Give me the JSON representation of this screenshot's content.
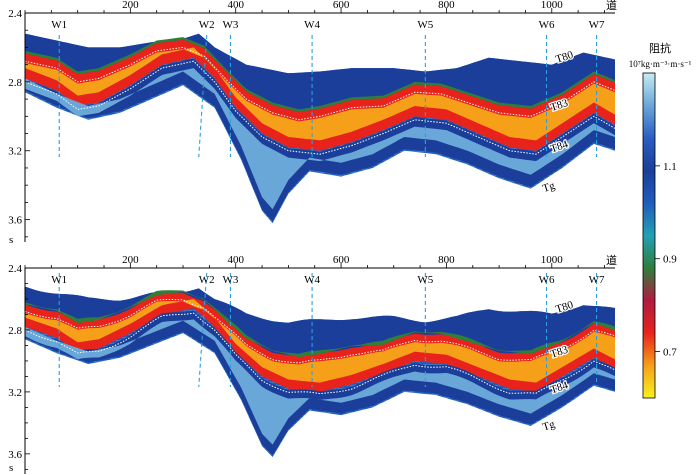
{
  "chart_data": [
    {
      "type": "heatmap",
      "panel": "top",
      "x_ticks": [
        200,
        400,
        600,
        800,
        1000
      ],
      "x_unit": "道",
      "y_ticks": [
        2.4,
        2.8,
        3.2,
        3.6
      ],
      "y_unit": "s",
      "xlim": [
        0,
        1120
      ],
      "ylim": [
        2.4,
        3.73
      ],
      "wells": [
        {
          "name": "W1",
          "trace": 65
        },
        {
          "name": "W2",
          "trace": 345
        },
        {
          "name": "W3",
          "trace": 390
        },
        {
          "name": "W4",
          "trace": 545
        },
        {
          "name": "W5",
          "trace": 760
        },
        {
          "name": "W6",
          "trace": 990
        },
        {
          "name": "W7",
          "trace": 1085
        }
      ],
      "horizons": [
        {
          "name": "T80",
          "label_trace": 1010,
          "label_time": 2.69
        },
        {
          "name": "T83",
          "label_trace": 1000,
          "label_time": 2.97
        },
        {
          "name": "T84",
          "label_trace": 1000,
          "label_time": 3.21
        },
        {
          "name": "Tg",
          "label_trace": 985,
          "label_time": 3.44
        }
      ]
    },
    {
      "type": "heatmap",
      "panel": "bottom",
      "x_ticks": [
        200,
        400,
        600,
        800,
        1000
      ],
      "x_unit": "道",
      "y_ticks": [
        2.4,
        2.8,
        3.2,
        3.6
      ],
      "y_unit": "s",
      "xlim": [
        0,
        1120
      ],
      "ylim": [
        2.4,
        3.73
      ],
      "wells": [
        {
          "name": "W1",
          "trace": 65
        },
        {
          "name": "W2",
          "trace": 345
        },
        {
          "name": "W3",
          "trace": 390
        },
        {
          "name": "W4",
          "trace": 545
        },
        {
          "name": "W5",
          "trace": 760
        },
        {
          "name": "W6",
          "trace": 990
        },
        {
          "name": "W7",
          "trace": 1085
        }
      ],
      "horizons": [
        {
          "name": "T80",
          "label_trace": 1010,
          "label_time": 2.69
        },
        {
          "name": "T83",
          "label_trace": 1000,
          "label_time": 2.98
        },
        {
          "name": "T84",
          "label_trace": 1000,
          "label_time": 3.21
        },
        {
          "name": "Tg",
          "label_trace": 985,
          "label_time": 3.45
        }
      ]
    }
  ],
  "colorbar": {
    "title": "阻抗",
    "unit": "10⁷kg·m⁻³·m·s⁻¹",
    "ticks": [
      1.1,
      0.9,
      0.7
    ],
    "range": [
      0.6,
      1.3
    ],
    "colors": [
      "#f7f21a",
      "#f6a019",
      "#e8231c",
      "#b01c40",
      "#2e7e3c",
      "#22a0b5",
      "#1f5dbd",
      "#1b3e9a",
      "#2a5ec4",
      "#6aa7d9",
      "#c6ebf3"
    ]
  }
}
